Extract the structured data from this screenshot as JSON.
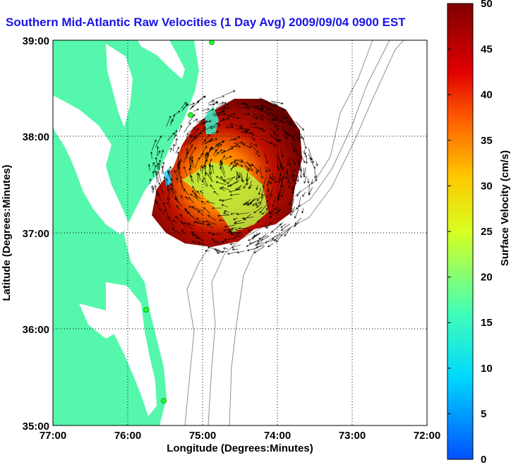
{
  "title": "Southern Mid-Atlantic Raw Velocities (1 Day Avg) 2009/09/04 0900 EST",
  "xlabel": "Longitude (Degrees:Minutes)",
  "ylabel": "Latitude (Degrees:Minutes)",
  "colorbar": {
    "label": "Surface Velocity (cm/s)",
    "min": 0,
    "max": 50,
    "ticks": [
      "0",
      "5",
      "10",
      "15",
      "20",
      "25",
      "30",
      "35",
      "40",
      "45",
      "50"
    ]
  },
  "colors": {
    "land": "#55f7ac",
    "title": "#1a14e6",
    "bathy": "#909090"
  },
  "chart_data": {
    "type": "map",
    "xlim": [
      -77,
      -72
    ],
    "ylim": [
      35,
      39
    ],
    "x_ticks": [
      "77:00",
      "76:00",
      "75:00",
      "74:00",
      "73:00",
      "72:00"
    ],
    "y_ticks": [
      "39:00",
      "38:00",
      "37:00",
      "36:00",
      "35:00"
    ],
    "grid": true
  }
}
